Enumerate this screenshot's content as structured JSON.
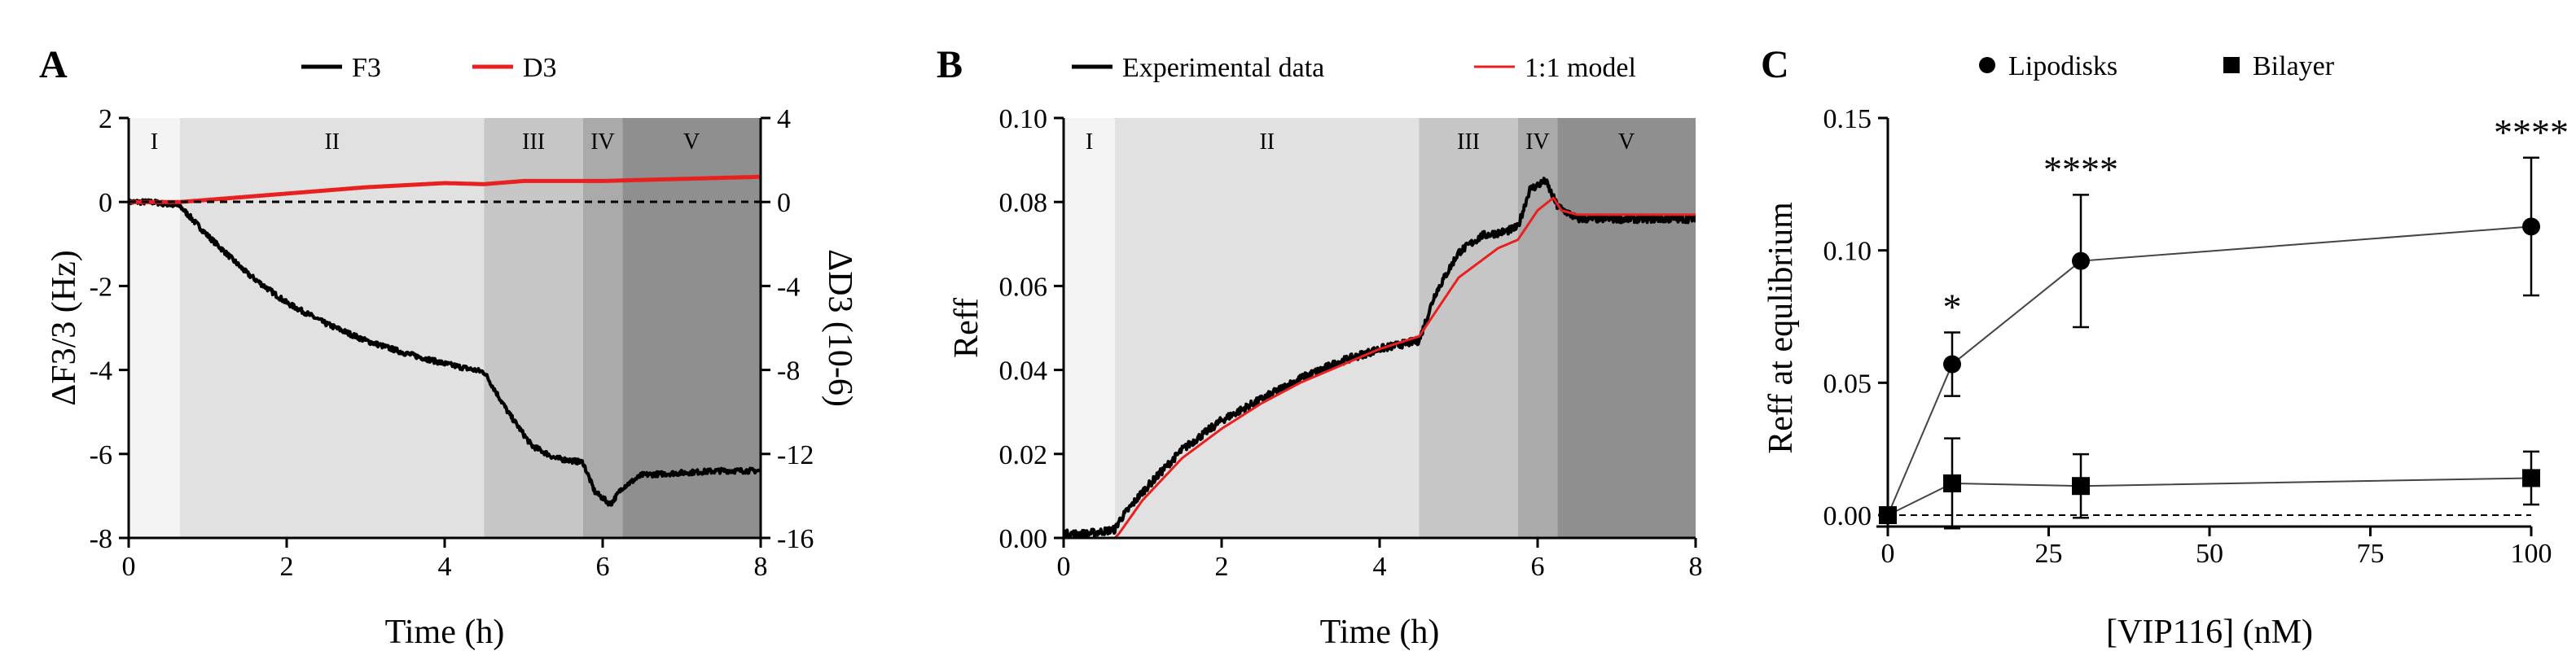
{
  "chart_data": [
    {
      "type": "line",
      "panel": "A",
      "xlabel": "Time (h)",
      "ylabel": "ΔF3/3 (Hz)",
      "y2label": "ΔD3 (10-6)",
      "xlim": [
        0,
        8
      ],
      "ylim": [
        -8,
        2
      ],
      "y2lim": [
        -16,
        4
      ],
      "xticks": [
        "0",
        "2",
        "4",
        "6",
        "8"
      ],
      "yticks": [
        "2",
        "0",
        "-2",
        "-4",
        "-6",
        "-8"
      ],
      "y2ticks": [
        "4",
        "0",
        "-4",
        "-8",
        "-12",
        "-16"
      ],
      "legend": [
        "F3",
        "D3"
      ],
      "colors": {
        "F3": "#000000",
        "D3": "#e8201f"
      },
      "regions": [
        {
          "label": "I",
          "start": 0,
          "end": 0.65,
          "shade": "#f4f4f4"
        },
        {
          "label": "II",
          "start": 0.65,
          "end": 4.5,
          "shade": "#e1e1e1"
        },
        {
          "label": "III",
          "start": 4.5,
          "end": 5.75,
          "shade": "#c6c6c6"
        },
        {
          "label": "IV",
          "start": 5.75,
          "end": 6.25,
          "shade": "#aaaaaa"
        },
        {
          "label": "V",
          "start": 6.25,
          "end": 8,
          "shade": "#8f8f8f"
        }
      ],
      "series": [
        {
          "name": "F3",
          "axis": "left",
          "x": [
            0,
            0.3,
            0.65,
            1,
            1.5,
            2,
            2.5,
            3,
            3.5,
            4,
            4.5,
            4.8,
            5.1,
            5.4,
            5.75,
            5.9,
            6.1,
            6.25,
            6.5,
            7,
            7.5,
            8
          ],
          "values": [
            0,
            0,
            -0.1,
            -0.8,
            -1.7,
            -2.4,
            -2.9,
            -3.3,
            -3.6,
            -3.85,
            -4.05,
            -5.0,
            -5.8,
            -6.1,
            -6.2,
            -6.9,
            -7.2,
            -6.8,
            -6.5,
            -6.45,
            -6.4,
            -6.4
          ]
        },
        {
          "name": "D3",
          "axis": "right",
          "x": [
            0,
            0.65,
            1,
            2,
            3,
            4,
            4.5,
            5,
            6,
            7,
            8
          ],
          "values": [
            0,
            0,
            0.1,
            0.4,
            0.7,
            0.9,
            0.85,
            1.0,
            1.0,
            1.1,
            1.2
          ]
        }
      ]
    },
    {
      "type": "line",
      "panel": "B",
      "xlabel": "Time (h)",
      "ylabel": "Reff",
      "xlim": [
        0,
        8
      ],
      "ylim": [
        0,
        0.1
      ],
      "xticks": [
        "0",
        "2",
        "4",
        "6",
        "8"
      ],
      "yticks": [
        "0.10",
        "0.08",
        "0.06",
        "0.04",
        "0.02",
        "0.00"
      ],
      "legend": [
        "Experimental data",
        "1:1 model"
      ],
      "colors": {
        "Experimental data": "#000000",
        "1:1 model": "#e8201f"
      },
      "regions": [
        {
          "label": "I",
          "start": 0,
          "end": 0.65,
          "shade": "#f4f4f4"
        },
        {
          "label": "II",
          "start": 0.65,
          "end": 4.5,
          "shade": "#e1e1e1"
        },
        {
          "label": "III",
          "start": 4.5,
          "end": 5.75,
          "shade": "#c6c6c6"
        },
        {
          "label": "IV",
          "start": 5.75,
          "end": 6.25,
          "shade": "#aaaaaa"
        },
        {
          "label": "V",
          "start": 6.25,
          "end": 8,
          "shade": "#8f8f8f"
        }
      ],
      "series": [
        {
          "name": "Experimental data",
          "x": [
            0,
            0.3,
            0.65,
            0.7,
            1,
            1.5,
            2,
            2.5,
            3,
            3.5,
            4,
            4.5,
            4.7,
            5,
            5.3,
            5.6,
            5.75,
            5.9,
            6.1,
            6.25,
            6.5,
            7,
            7.5,
            8
          ],
          "values": [
            0.001,
            0.001,
            0.002,
            0.004,
            0.011,
            0.021,
            0.028,
            0.033,
            0.038,
            0.042,
            0.045,
            0.047,
            0.058,
            0.068,
            0.072,
            0.073,
            0.074,
            0.083,
            0.085,
            0.079,
            0.076,
            0.076,
            0.076,
            0.076
          ]
        },
        {
          "name": "1:1 model",
          "x": [
            0,
            0.65,
            0.7,
            1,
            1.5,
            2,
            2.5,
            3,
            3.5,
            4,
            4.5,
            4.75,
            5,
            5.5,
            5.75,
            6.0,
            6.2,
            6.3,
            6.5,
            7,
            7.5,
            8
          ],
          "values": [
            0,
            0,
            0.001,
            0.009,
            0.019,
            0.026,
            0.032,
            0.037,
            0.041,
            0.045,
            0.048,
            0.055,
            0.062,
            0.069,
            0.071,
            0.078,
            0.081,
            0.078,
            0.077,
            0.077,
            0.077,
            0.077
          ]
        }
      ]
    },
    {
      "type": "scatter",
      "panel": "C",
      "xlabel": "[VIP116] (nM)",
      "ylabel": "Reff at equlibrium",
      "xlim": [
        0,
        100
      ],
      "ylim": [
        0,
        0.15
      ],
      "xticks": [
        "0",
        "25",
        "50",
        "75",
        "100"
      ],
      "yticks": [
        "0.15",
        "0.10",
        "0.05",
        "0.00"
      ],
      "legend": [
        "Lipodisks",
        "Bilayer"
      ],
      "series": [
        {
          "name": "Lipodisks",
          "marker": "circle",
          "x": [
            0,
            10,
            30,
            100
          ],
          "values": [
            0,
            0.057,
            0.096,
            0.109
          ],
          "errors": [
            0,
            0.012,
            0.025,
            0.026
          ],
          "annotations": [
            "",
            "*",
            "****",
            "****"
          ]
        },
        {
          "name": "Bilayer",
          "marker": "square",
          "x": [
            0,
            10,
            30,
            100
          ],
          "values": [
            0,
            0.012,
            0.011,
            0.014
          ],
          "errors": [
            0,
            0.017,
            0.012,
            0.01
          ],
          "annotations": [
            "",
            "",
            "",
            ""
          ]
        }
      ]
    }
  ]
}
